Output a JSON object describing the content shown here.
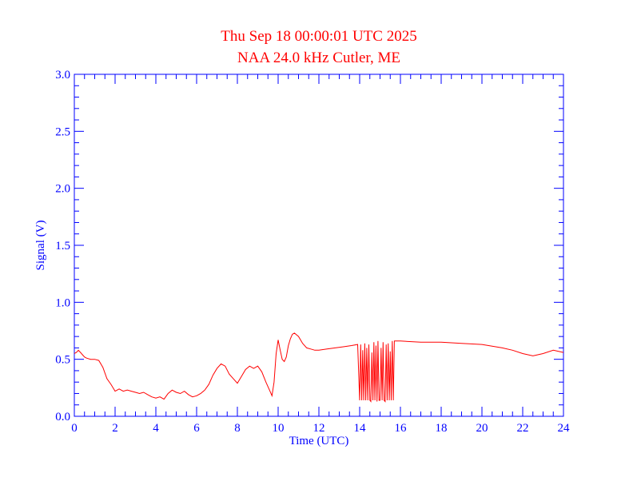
{
  "chart_data": {
    "type": "line",
    "title": "Thu Sep 18 00:00:01 UTC 2025",
    "subtitle": "NAA 24.0 kHz Cutler, ME",
    "xlabel": "Time (UTC)",
    "ylabel": "Signal (V)",
    "xlim": [
      0,
      24
    ],
    "ylim": [
      0,
      3.0
    ],
    "xticks": [
      "0",
      "2",
      "4",
      "6",
      "8",
      "10",
      "12",
      "14",
      "16",
      "18",
      "20",
      "22",
      "24"
    ],
    "yticks": [
      "0.0",
      "0.5",
      "1.0",
      "1.5",
      "2.0",
      "2.5",
      "3.0"
    ],
    "grid": false,
    "colors": {
      "title": "#ff0000",
      "axes": "#0000ff",
      "series": "#ff0000"
    },
    "series": [
      {
        "x": [
          0,
          0.1,
          0.2,
          0.3,
          0.4,
          0.5,
          0.6,
          0.8,
          1.0,
          1.2,
          1.4,
          1.6,
          1.8,
          2.0,
          2.1,
          2.2,
          2.4,
          2.6,
          2.8,
          3.0,
          3.2,
          3.4,
          3.6,
          3.8,
          4.0,
          4.2,
          4.4,
          4.6,
          4.8,
          5.0,
          5.2,
          5.4,
          5.6,
          5.8,
          6.0,
          6.2,
          6.4,
          6.6,
          6.8,
          7.0,
          7.2,
          7.4,
          7.6,
          7.8,
          8.0,
          8.2,
          8.4,
          8.6,
          8.8,
          9.0,
          9.2,
          9.4,
          9.6,
          9.7,
          9.8,
          9.9,
          10.0,
          10.1,
          10.2,
          10.3,
          10.4,
          10.5,
          10.6,
          10.7,
          10.8,
          11.0,
          11.2,
          11.4,
          11.6,
          11.8,
          12.0,
          12.4,
          12.8,
          13.2,
          13.6,
          13.9,
          14.0,
          14.05,
          14.1,
          14.15,
          14.2,
          14.25,
          14.3,
          14.35,
          14.4,
          14.45,
          14.5,
          14.55,
          14.6,
          14.65,
          14.7,
          14.75,
          14.8,
          14.85,
          14.9,
          14.95,
          15.0,
          15.05,
          15.1,
          15.15,
          15.2,
          15.25,
          15.3,
          15.35,
          15.4,
          15.45,
          15.5,
          15.55,
          15.6,
          15.65,
          15.7,
          15.8,
          16.0,
          17.0,
          18.0,
          19.0,
          20.0,
          21.0,
          21.5,
          22.0,
          22.5,
          23.0,
          23.5,
          24.0
        ],
        "values": [
          0.55,
          0.56,
          0.58,
          0.56,
          0.54,
          0.52,
          0.51,
          0.5,
          0.5,
          0.49,
          0.43,
          0.33,
          0.28,
          0.22,
          0.23,
          0.24,
          0.22,
          0.23,
          0.22,
          0.21,
          0.2,
          0.21,
          0.19,
          0.17,
          0.16,
          0.17,
          0.15,
          0.2,
          0.23,
          0.21,
          0.2,
          0.22,
          0.19,
          0.17,
          0.18,
          0.2,
          0.23,
          0.28,
          0.36,
          0.42,
          0.46,
          0.44,
          0.37,
          0.33,
          0.29,
          0.35,
          0.41,
          0.44,
          0.42,
          0.44,
          0.39,
          0.3,
          0.22,
          0.18,
          0.3,
          0.55,
          0.67,
          0.58,
          0.5,
          0.48,
          0.52,
          0.62,
          0.68,
          0.72,
          0.73,
          0.7,
          0.64,
          0.6,
          0.59,
          0.58,
          0.58,
          0.59,
          0.6,
          0.61,
          0.62,
          0.63,
          0.14,
          0.63,
          0.14,
          0.58,
          0.14,
          0.64,
          0.14,
          0.6,
          0.14,
          0.63,
          0.14,
          0.13,
          0.56,
          0.14,
          0.65,
          0.14,
          0.62,
          0.13,
          0.66,
          0.14,
          0.14,
          0.6,
          0.14,
          0.65,
          0.14,
          0.13,
          0.63,
          0.14,
          0.64,
          0.14,
          0.57,
          0.14,
          0.66,
          0.14,
          0.66,
          0.66,
          0.66,
          0.65,
          0.65,
          0.64,
          0.63,
          0.6,
          0.58,
          0.55,
          0.53,
          0.55,
          0.58,
          0.56
        ]
      }
    ]
  }
}
